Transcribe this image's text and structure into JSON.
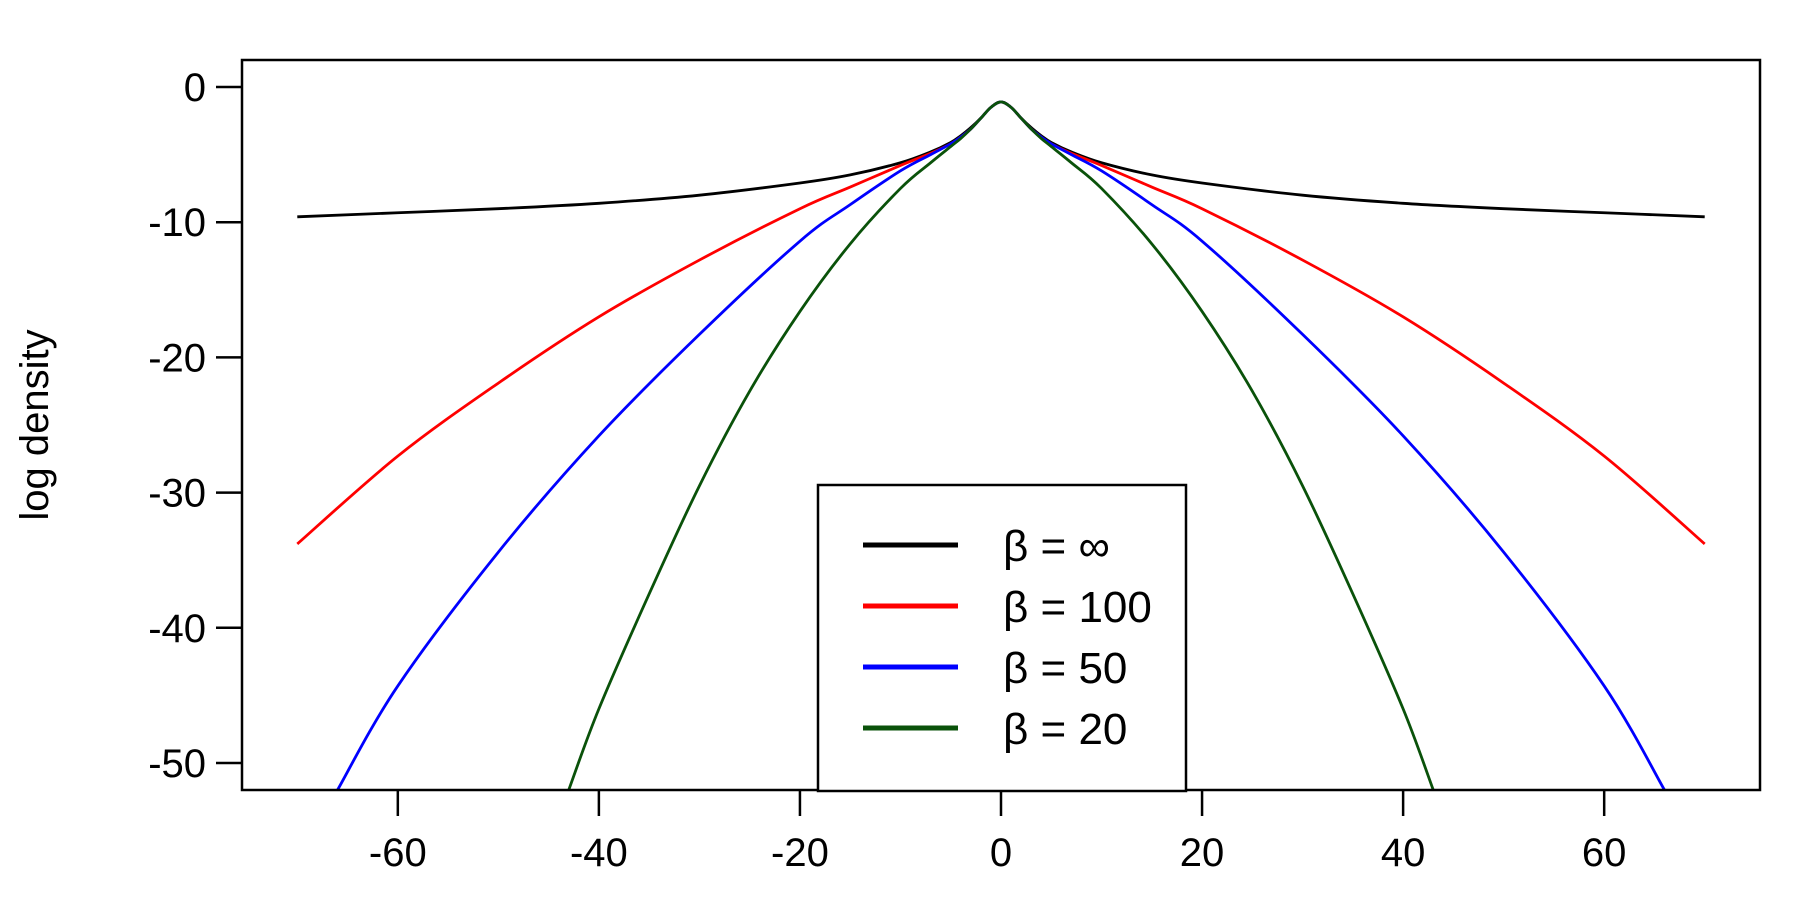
{
  "chart_data": {
    "type": "line",
    "title": "",
    "xlabel": "",
    "ylabel": "log density",
    "xlim": [
      -75.5,
      75.5
    ],
    "ylim": [
      -52,
      2
    ],
    "x_ticks": [
      -60,
      -40,
      -20,
      0,
      20,
      40,
      60
    ],
    "y_ticks": [
      0,
      -10,
      -20,
      -30,
      -40,
      -50
    ],
    "x_tick_labels": [
      "-60",
      "-40",
      "-20",
      "0",
      "20",
      "40",
      "60"
    ],
    "y_tick_labels": [
      "0",
      "-10",
      "-20",
      "-30",
      "-40",
      "-50"
    ],
    "grid": false,
    "legend_position": "bottom-center",
    "series": [
      {
        "name": "β = ∞",
        "color": "#000000",
        "x": [
          -70,
          -60,
          -50,
          -40,
          -30,
          -20,
          -15,
          -10,
          -7,
          -5,
          -4,
          -3,
          -2,
          -1,
          0,
          1,
          2,
          3,
          4,
          5,
          7,
          10,
          15,
          20,
          30,
          40,
          50,
          60,
          70
        ],
        "y": [
          -9.6,
          -9.3,
          -9.0,
          -8.6,
          -8.0,
          -7.1,
          -6.5,
          -5.6,
          -4.8,
          -4.1,
          -3.6,
          -3.0,
          -2.3,
          -1.5,
          -1.1,
          -1.5,
          -2.3,
          -3.0,
          -3.6,
          -4.1,
          -4.8,
          -5.6,
          -6.5,
          -7.1,
          -8.0,
          -8.6,
          -9.0,
          -9.3,
          -9.6
        ]
      },
      {
        "name": "β = 100",
        "color": "#ff0000",
        "x": [
          -70,
          -60,
          -50,
          -40,
          -30,
          -20,
          -15,
          -10,
          -7,
          -5,
          -4,
          -3,
          -2,
          -1,
          0,
          1,
          2,
          3,
          4,
          5,
          7,
          10,
          15,
          20,
          30,
          40,
          50,
          60,
          70
        ],
        "y": [
          -33.8,
          -27.3,
          -21.9,
          -17.0,
          -12.8,
          -9.0,
          -7.4,
          -5.8,
          -4.9,
          -4.2,
          -3.7,
          -3.1,
          -2.3,
          -1.5,
          -1.1,
          -1.5,
          -2.3,
          -3.1,
          -3.7,
          -4.2,
          -4.9,
          -5.8,
          -7.4,
          -9.0,
          -12.8,
          -17.0,
          -21.9,
          -27.3,
          -33.8
        ]
      },
      {
        "name": "β = 50",
        "color": "#0000ff",
        "x": [
          -66,
          -60,
          -50,
          -40,
          -30,
          -20,
          -15,
          -10,
          -7,
          -5,
          -4,
          -3,
          -2,
          -1,
          0,
          1,
          2,
          3,
          4,
          5,
          7,
          10,
          15,
          20,
          30,
          40,
          50,
          60,
          66
        ],
        "y": [
          -52.0,
          -44.3,
          -34.4,
          -25.8,
          -18.3,
          -11.4,
          -8.7,
          -6.2,
          -5.0,
          -4.2,
          -3.7,
          -3.1,
          -2.3,
          -1.5,
          -1.1,
          -1.5,
          -2.3,
          -3.1,
          -3.7,
          -4.2,
          -5.0,
          -6.2,
          -8.7,
          -11.4,
          -18.3,
          -25.8,
          -34.4,
          -44.3,
          -52.0
        ]
      },
      {
        "name": "β = 20",
        "color": "#0a520a",
        "x": [
          -43,
          -40,
          -35,
          -30,
          -25,
          -20,
          -15,
          -10,
          -7,
          -5,
          -4,
          -3,
          -2,
          -1,
          0,
          1,
          2,
          3,
          4,
          5,
          7,
          10,
          15,
          20,
          25,
          30,
          35,
          40,
          43
        ],
        "y": [
          -52.0,
          -46.0,
          -37.5,
          -29.5,
          -22.5,
          -16.6,
          -11.6,
          -7.5,
          -5.6,
          -4.4,
          -3.8,
          -3.1,
          -2.3,
          -1.5,
          -1.1,
          -1.5,
          -2.3,
          -3.1,
          -3.8,
          -4.4,
          -5.6,
          -7.5,
          -11.6,
          -16.6,
          -22.5,
          -29.5,
          -37.5,
          -46.0,
          -52.0
        ]
      }
    ]
  }
}
